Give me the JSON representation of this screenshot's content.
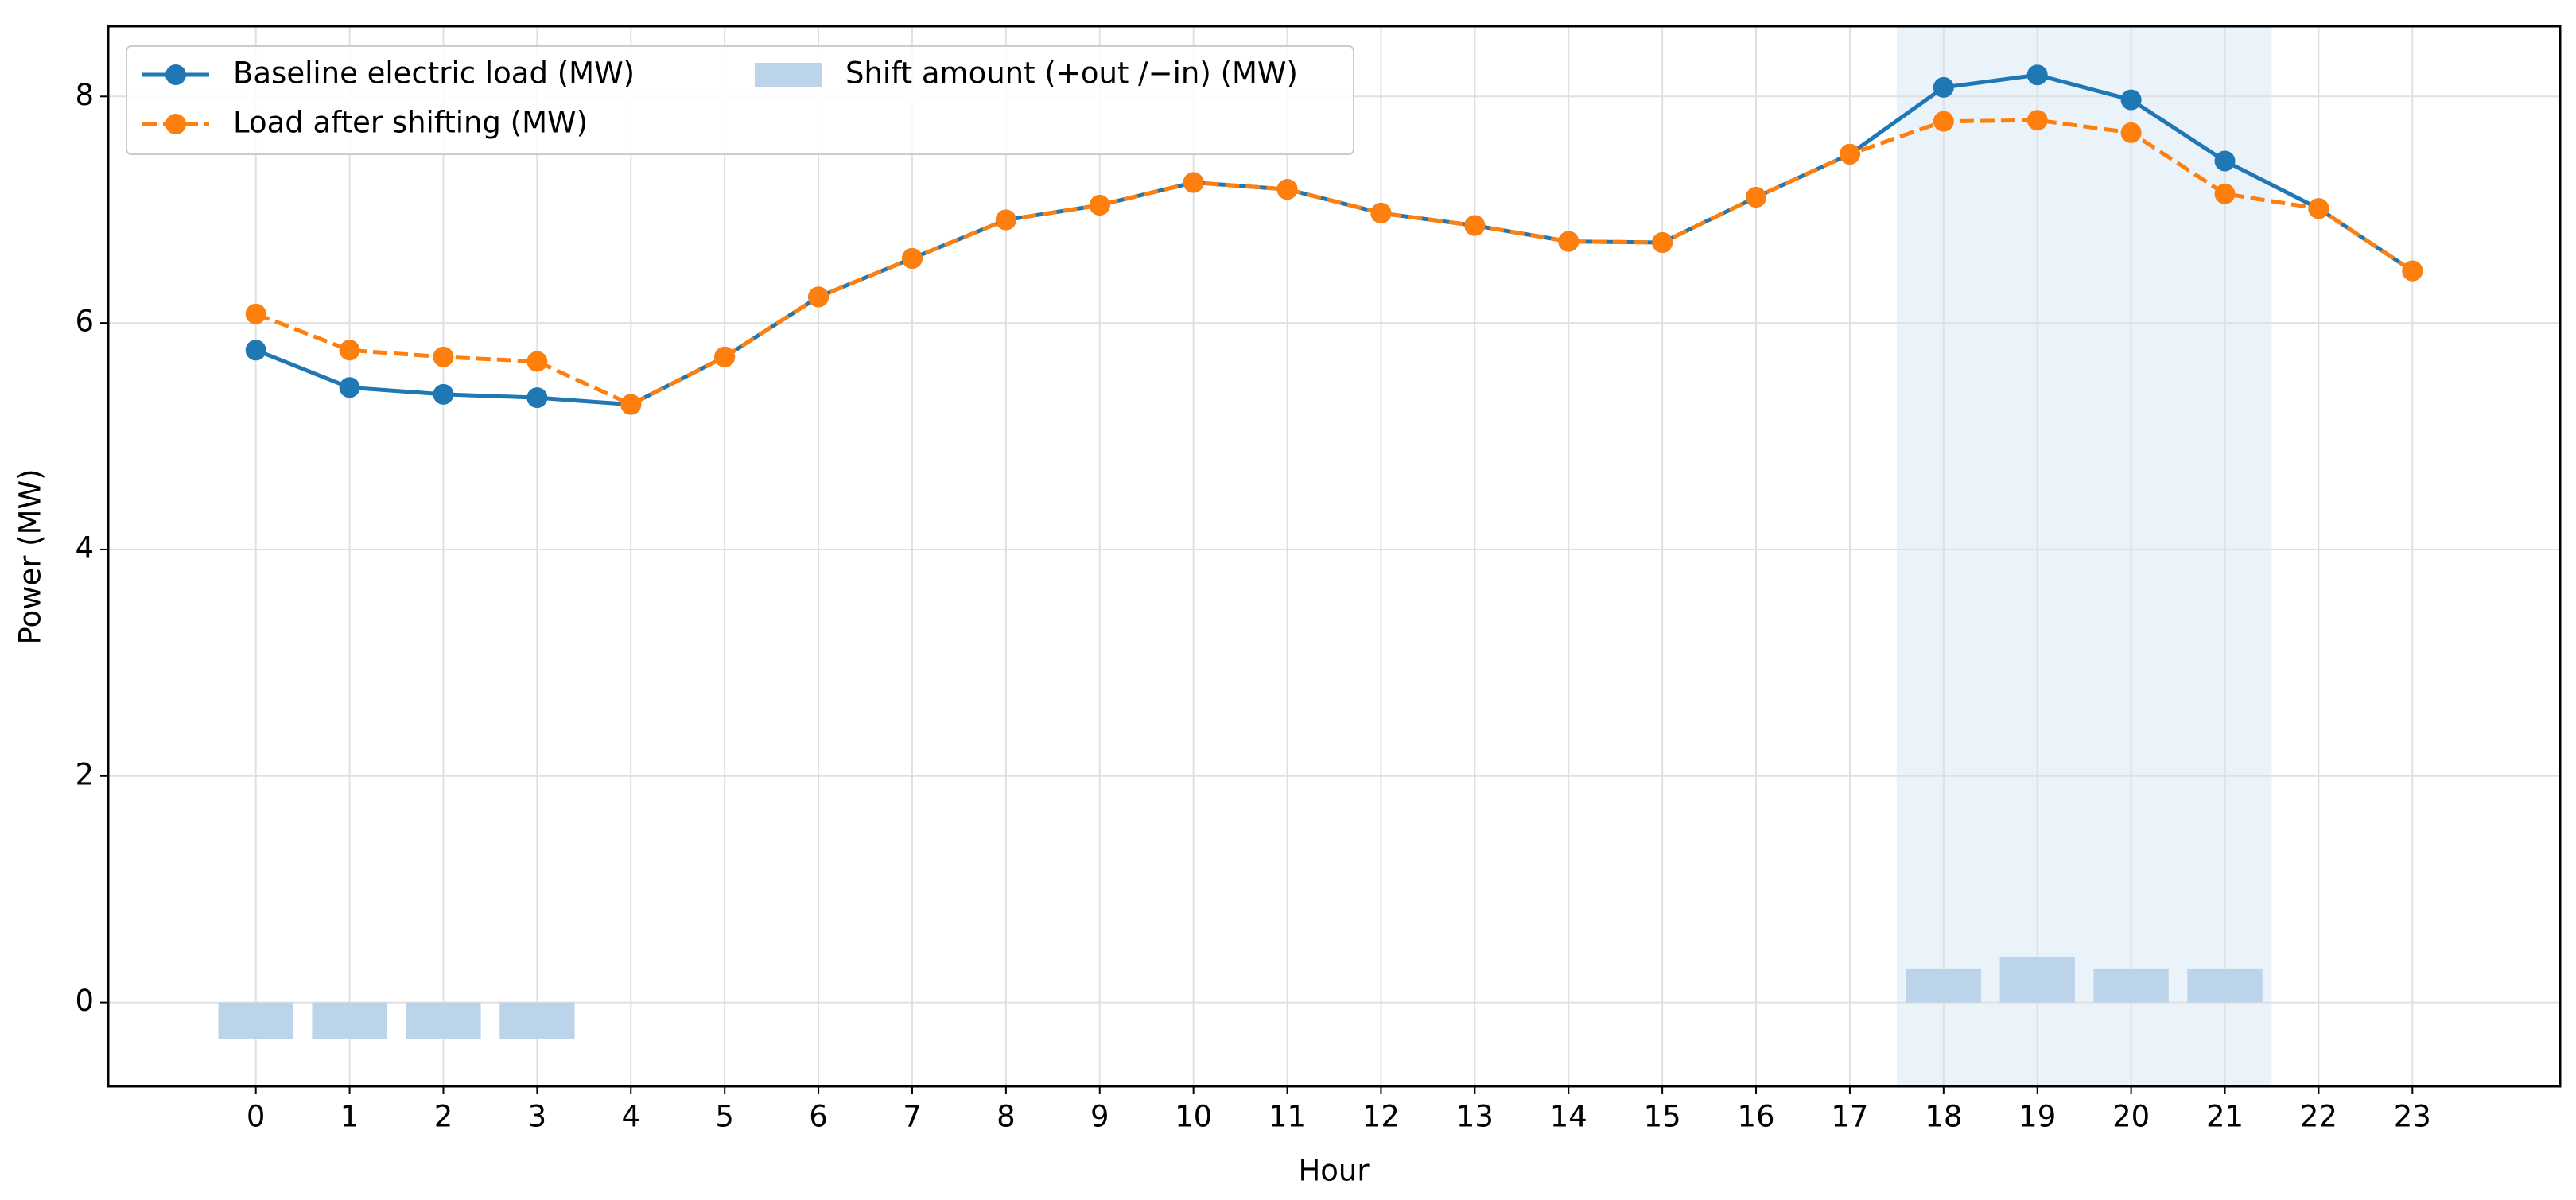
{
  "chart_data": {
    "type": "line",
    "x_label": "Hour",
    "y_label": "Power (MW)",
    "x": [
      0,
      1,
      2,
      3,
      4,
      5,
      6,
      7,
      8,
      9,
      10,
      11,
      12,
      13,
      14,
      15,
      16,
      17,
      18,
      19,
      20,
      21,
      22,
      23
    ],
    "series": [
      {
        "name": "Baseline electric load (MW)",
        "color": "#1f77b4",
        "style": "solid",
        "kind": "line",
        "values": [
          5.76,
          5.43,
          5.37,
          5.34,
          5.28,
          5.7,
          6.23,
          6.57,
          6.91,
          7.04,
          7.24,
          7.18,
          6.97,
          6.86,
          6.72,
          6.71,
          7.11,
          7.49,
          8.08,
          8.19,
          7.97,
          7.43,
          7.01,
          6.46
        ]
      },
      {
        "name": "Load after shifting (MW)",
        "color": "#ff7f0e",
        "style": "dashed",
        "kind": "line",
        "values": [
          6.08,
          5.76,
          5.7,
          5.66,
          5.28,
          5.7,
          6.23,
          6.57,
          6.91,
          7.04,
          7.24,
          7.18,
          6.97,
          6.86,
          6.72,
          6.71,
          7.11,
          7.49,
          7.78,
          7.79,
          7.68,
          7.14,
          7.01,
          6.46
        ]
      },
      {
        "name": "Shift amount (+out /−in) (MW)",
        "color": "#bcd4ea",
        "style": "solid",
        "kind": "bar",
        "values": [
          -0.32,
          -0.32,
          -0.32,
          -0.32,
          0,
          0,
          0,
          0,
          0,
          0,
          0,
          0,
          0,
          0,
          0,
          0,
          0,
          0,
          0.3,
          0.4,
          0.3,
          0.3,
          0,
          0
        ]
      }
    ],
    "highlight": [
      17.5,
      21.5
    ],
    "highlight_color": "#eaf2fa",
    "xlim": [
      -1.575,
      24.575
    ],
    "xticks": [
      0,
      1,
      2,
      3,
      4,
      5,
      6,
      7,
      8,
      9,
      10,
      11,
      12,
      13,
      14,
      15,
      16,
      17,
      18,
      19,
      20,
      21,
      22,
      23
    ],
    "ylim": [
      -0.74,
      8.62
    ],
    "yticks": [
      0,
      2,
      4,
      6,
      8
    ],
    "grid": true,
    "legend": "upper left",
    "legend_columns": 2
  }
}
